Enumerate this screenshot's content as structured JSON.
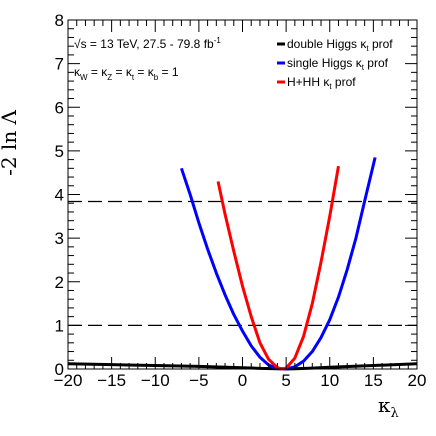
{
  "chart_data": {
    "type": "line",
    "xlabel": "κ",
    "xlabel_sub": "λ",
    "ylabel": "-2 ln Λ",
    "xlim": [
      -20,
      20
    ],
    "ylim": [
      0,
      8
    ],
    "x_ticks": [
      "−20",
      "−15",
      "−10",
      "−5",
      "0",
      "5",
      "10",
      "15",
      "20"
    ],
    "x_tick_values": [
      -20,
      -15,
      -10,
      -5,
      0,
      5,
      10,
      15,
      20
    ],
    "y_ticks": [
      "0",
      "1",
      "2",
      "3",
      "4",
      "5",
      "6",
      "7",
      "8"
    ],
    "y_tick_values": [
      0,
      1,
      2,
      3,
      4,
      5,
      6,
      7,
      8
    ],
    "annotations": {
      "energy_prefix": "√s",
      "energy_text": " = 13 TeV, 27.5 - 79.8 fb",
      "energy_sup": "-1",
      "couplings_text": "κW = κZ = κt = κb = 1",
      "couplings_parts": [
        {
          "t": "κ",
          "sub": "W"
        },
        {
          "t": " = κ",
          "sub": "Z"
        },
        {
          "t": " = κ",
          "sub": "t"
        },
        {
          "t": " = κ",
          "sub": "b"
        },
        {
          "t": " = 1",
          "sub": ""
        }
      ]
    },
    "reference_lines": [
      1,
      3.84
    ],
    "grid": false,
    "legend_position": "top-right",
    "series": [
      {
        "name": "double Higgs κt prof",
        "label_main": "double Higgs κ",
        "label_sub": "t",
        "label_tail": " prof",
        "color": "#000000",
        "x": [
          -20,
          -15,
          -10,
          -5,
          0,
          2,
          4,
          5,
          6,
          8,
          10,
          15,
          20
        ],
        "y": [
          0.12,
          0.1,
          0.08,
          0.06,
          0.03,
          0.015,
          0.005,
          0.0,
          0.005,
          0.02,
          0.04,
          0.08,
          0.12
        ]
      },
      {
        "name": "single Higgs κt prof",
        "label_main": "single Higgs κ",
        "label_sub": "t",
        "label_tail": " prof",
        "color": "#0000ff",
        "x": [
          -7.0,
          -6.0,
          -5.0,
          -4.0,
          -3.0,
          -2.0,
          -1.0,
          0.0,
          1.0,
          2.0,
          3.0,
          4.0,
          5.0,
          6.0,
          7.0,
          8.0,
          9.0,
          10.0,
          11.0,
          12.0,
          13.0,
          14.0,
          15.2
        ],
        "y": [
          4.6,
          4.0,
          3.35,
          2.75,
          2.2,
          1.7,
          1.25,
          0.87,
          0.53,
          0.27,
          0.09,
          0.01,
          0.0,
          0.05,
          0.18,
          0.4,
          0.72,
          1.13,
          1.65,
          2.28,
          3.0,
          3.85,
          4.85
        ]
      },
      {
        "name": "H+HH κt prof",
        "label_main": "H+HH κ",
        "label_sub": "t",
        "label_tail": " prof",
        "color": "#ff0000",
        "x": [
          -2.8,
          -2.0,
          -1.0,
          0.0,
          1.0,
          2.0,
          3.0,
          4.0,
          4.6,
          5.0,
          6.0,
          7.0,
          8.0,
          9.0,
          10.0,
          11.0
        ],
        "y": [
          4.3,
          3.55,
          2.7,
          1.9,
          1.2,
          0.6,
          0.22,
          0.03,
          0.0,
          0.02,
          0.25,
          0.75,
          1.5,
          2.45,
          3.5,
          4.65
        ]
      }
    ]
  }
}
